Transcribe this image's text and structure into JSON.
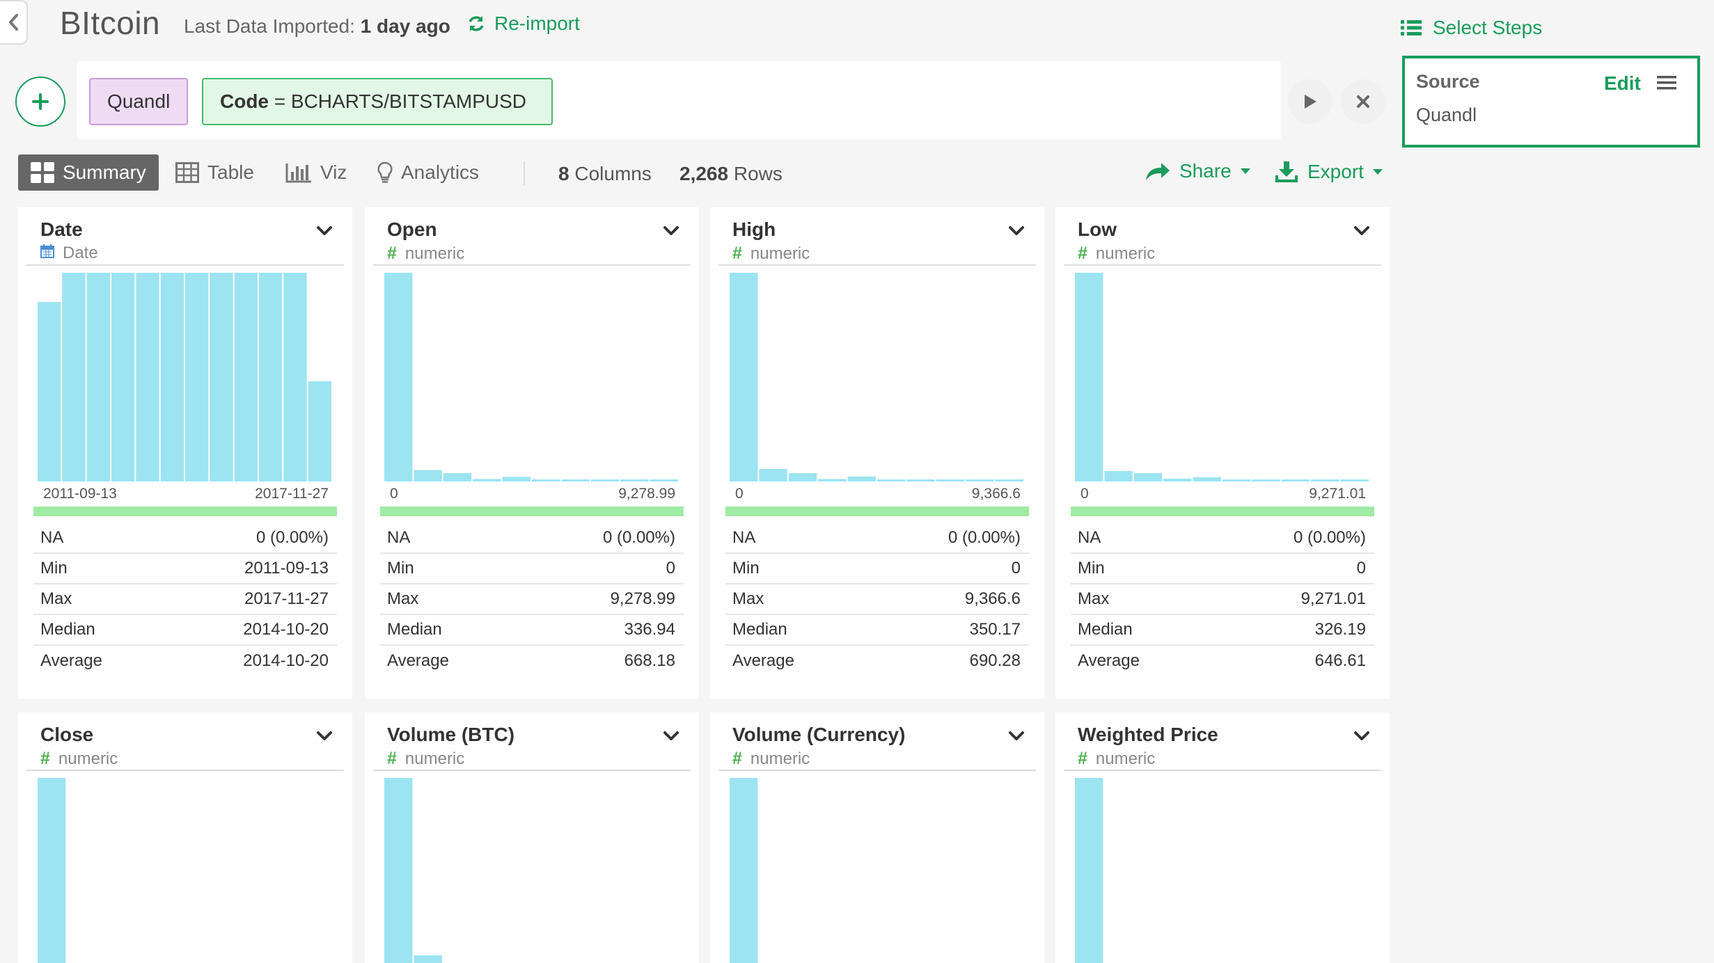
{
  "header": {
    "title": "BItcoin",
    "import_label": "Last Data Imported:",
    "import_when": "1 day ago",
    "reimport_label": "Re-import",
    "select_steps_label": "Select Steps"
  },
  "command": {
    "source_chip": "Quandl",
    "code_key": "Code",
    "code_value": " = BCHARTS/BITSTAMPUSD"
  },
  "step_panel": {
    "name": "Source",
    "value": "Quandl",
    "edit_label": "Edit"
  },
  "view": {
    "tabs": [
      {
        "label": "Summary",
        "icon": "summary-grid-icon"
      },
      {
        "label": "Table",
        "icon": "table-icon"
      },
      {
        "label": "Viz",
        "icon": "bar-chart-icon"
      },
      {
        "label": "Analytics",
        "icon": "lightbulb-icon"
      }
    ],
    "active_tab": "Summary",
    "columns_count": "8",
    "columns_label": "Columns",
    "rows_count": "2,268",
    "rows_label": "Rows",
    "share_label": "Share",
    "export_label": "Export"
  },
  "colors": {
    "accent": "#1a9c5a",
    "bar": "#9ce4f2",
    "na_bar": "#9feba3"
  },
  "cards": [
    {
      "name": "Date",
      "type": "Date",
      "type_icon": "calendar-icon",
      "hist": [
        0.86,
        1,
        1,
        1,
        1,
        1,
        1,
        1,
        1,
        1,
        1,
        0.48
      ],
      "axis_min": "2011-09-13",
      "axis_max": "2017-11-27",
      "stats": [
        {
          "label": "NA",
          "value": "0 (0.00%)"
        },
        {
          "label": "Min",
          "value": "2011-09-13"
        },
        {
          "label": "Max",
          "value": "2017-11-27"
        },
        {
          "label": "Median",
          "value": "2014-10-20"
        },
        {
          "label": "Average",
          "value": "2014-10-20"
        }
      ]
    },
    {
      "name": "Open",
      "type": "numeric",
      "type_icon": "hash-icon",
      "hist": [
        1,
        0.055,
        0.04,
        0.012,
        0.022,
        0.01,
        0.008,
        0.006,
        0.005,
        0.004
      ],
      "axis_min": "0",
      "axis_max": "9,278.99",
      "stats": [
        {
          "label": "NA",
          "value": "0 (0.00%)"
        },
        {
          "label": "Min",
          "value": "0"
        },
        {
          "label": "Max",
          "value": "9,278.99"
        },
        {
          "label": "Median",
          "value": "336.94"
        },
        {
          "label": "Average",
          "value": "668.18"
        }
      ]
    },
    {
      "name": "High",
      "type": "numeric",
      "type_icon": "hash-icon",
      "hist": [
        1,
        0.06,
        0.04,
        0.012,
        0.024,
        0.01,
        0.008,
        0.006,
        0.005,
        0.004
      ],
      "axis_min": "0",
      "axis_max": "9,366.6",
      "stats": [
        {
          "label": "NA",
          "value": "0 (0.00%)"
        },
        {
          "label": "Min",
          "value": "0"
        },
        {
          "label": "Max",
          "value": "9,366.6"
        },
        {
          "label": "Median",
          "value": "350.17"
        },
        {
          "label": "Average",
          "value": "690.28"
        }
      ]
    },
    {
      "name": "Low",
      "type": "numeric",
      "type_icon": "hash-icon",
      "hist": [
        1,
        0.05,
        0.04,
        0.014,
        0.02,
        0.01,
        0.008,
        0.006,
        0.005,
        0.004
      ],
      "axis_min": "0",
      "axis_max": "9,271.01",
      "stats": [
        {
          "label": "NA",
          "value": "0 (0.00%)"
        },
        {
          "label": "Min",
          "value": "0"
        },
        {
          "label": "Max",
          "value": "9,271.01"
        },
        {
          "label": "Median",
          "value": "326.19"
        },
        {
          "label": "Average",
          "value": "646.61"
        }
      ]
    },
    {
      "name": "Close",
      "type": "numeric",
      "type_icon": "hash-icon",
      "hist": [
        1,
        0,
        0,
        0,
        0,
        0,
        0,
        0,
        0,
        0
      ]
    },
    {
      "name": "Volume (BTC)",
      "type": "numeric",
      "type_icon": "hash-icon",
      "hist": [
        1,
        0.15,
        0,
        0,
        0,
        0,
        0,
        0,
        0,
        0
      ]
    },
    {
      "name": "Volume (Currency)",
      "type": "numeric",
      "type_icon": "hash-icon",
      "hist": [
        1,
        0,
        0,
        0,
        0,
        0,
        0,
        0,
        0,
        0
      ]
    },
    {
      "name": "Weighted Price",
      "type": "numeric",
      "type_icon": "hash-icon",
      "hist": [
        1,
        0,
        0,
        0,
        0,
        0,
        0,
        0,
        0,
        0
      ]
    }
  ]
}
